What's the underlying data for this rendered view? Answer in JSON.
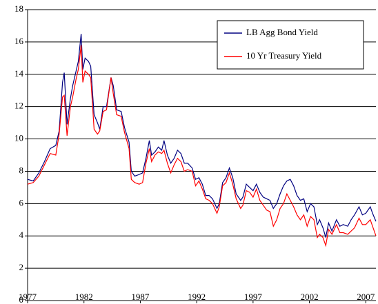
{
  "chart_data": {
    "type": "line",
    "x": [
      1977.0,
      1977.5,
      1978.0,
      1978.5,
      1979.0,
      1979.5,
      1979.8,
      1980.1,
      1980.25,
      1980.5,
      1980.8,
      1981.0,
      1981.3,
      1981.5,
      1981.75,
      1981.9,
      1982.1,
      1982.4,
      1982.6,
      1982.9,
      1983.2,
      1983.4,
      1983.7,
      1984.0,
      1984.4,
      1984.6,
      1984.9,
      1985.3,
      1985.6,
      1986.0,
      1986.2,
      1986.5,
      1986.9,
      1987.2,
      1987.5,
      1987.8,
      1988.0,
      1988.3,
      1988.6,
      1988.9,
      1989.1,
      1989.4,
      1989.7,
      1990.0,
      1990.3,
      1990.6,
      1990.9,
      1991.2,
      1991.6,
      1991.9,
      1992.2,
      1992.5,
      1992.8,
      1993.1,
      1993.4,
      1993.8,
      1994.0,
      1994.3,
      1994.6,
      1994.9,
      1995.2,
      1995.5,
      1995.9,
      1996.1,
      1996.4,
      1996.7,
      1997.0,
      1997.3,
      1997.6,
      1997.9,
      1998.2,
      1998.5,
      1998.8,
      1999.1,
      1999.4,
      1999.7,
      2000.0,
      2000.3,
      2000.6,
      2000.9,
      2001.2,
      2001.5,
      2001.8,
      2002.1,
      2002.4,
      2002.7,
      2002.9,
      2003.2,
      2003.45,
      2003.7,
      2004.0,
      2004.4,
      2004.7,
      2005.0,
      2005.4,
      2005.7,
      2006.0,
      2006.4,
      2006.7,
      2007.0,
      2007.4,
      2007.6,
      2007.9
    ],
    "series": [
      {
        "name": "LB Agg Bond Yield",
        "color": "#000080",
        "values": [
          7.5,
          7.4,
          7.9,
          8.6,
          9.4,
          9.6,
          10.5,
          13.5,
          14.1,
          10.9,
          12.5,
          13.3,
          14.2,
          14.8,
          16.5,
          14.3,
          15.0,
          14.8,
          14.5,
          11.5,
          11.0,
          10.6,
          12.0,
          12.0,
          13.8,
          13.3,
          11.8,
          11.7,
          10.7,
          9.8,
          8.0,
          7.7,
          7.8,
          7.9,
          8.8,
          9.9,
          9.0,
          9.2,
          9.5,
          9.3,
          9.9,
          9.0,
          8.5,
          8.8,
          9.3,
          9.1,
          8.5,
          8.5,
          8.2,
          7.5,
          7.6,
          7.2,
          6.5,
          6.5,
          6.3,
          5.7,
          6.0,
          7.3,
          7.6,
          8.2,
          7.6,
          6.6,
          6.2,
          6.4,
          7.2,
          7.0,
          6.8,
          7.2,
          6.7,
          6.4,
          6.3,
          6.2,
          5.7,
          6.0,
          6.6,
          7.1,
          7.4,
          7.5,
          7.1,
          6.5,
          6.2,
          6.3,
          5.5,
          6.0,
          5.8,
          4.7,
          5.0,
          4.5,
          3.9,
          4.8,
          4.3,
          5.0,
          4.6,
          4.7,
          4.6,
          5.0,
          5.3,
          5.8,
          5.3,
          5.4,
          5.8,
          5.4,
          4.9
        ]
      },
      {
        "name": "10 Yr Treasury Yield",
        "color": "#ff0000",
        "values": [
          7.2,
          7.3,
          7.7,
          8.4,
          9.1,
          9.0,
          10.3,
          12.6,
          12.7,
          10.2,
          12.0,
          12.6,
          13.7,
          14.3,
          15.8,
          13.5,
          14.2,
          14.0,
          13.8,
          10.6,
          10.3,
          10.5,
          11.7,
          11.8,
          13.8,
          12.8,
          11.5,
          11.4,
          10.4,
          9.4,
          7.5,
          7.3,
          7.2,
          7.3,
          8.5,
          9.4,
          8.6,
          9.0,
          9.2,
          9.1,
          9.3,
          8.5,
          7.9,
          8.4,
          8.8,
          8.6,
          8.0,
          8.1,
          8.0,
          7.1,
          7.4,
          6.9,
          6.3,
          6.2,
          6.0,
          5.4,
          5.8,
          7.1,
          7.3,
          7.9,
          7.2,
          6.3,
          5.7,
          5.9,
          6.8,
          6.7,
          6.4,
          6.9,
          6.2,
          5.9,
          5.6,
          5.5,
          4.6,
          5.0,
          5.7,
          6.0,
          6.6,
          6.2,
          5.8,
          5.3,
          5.0,
          5.3,
          4.6,
          5.2,
          5.0,
          3.9,
          4.1,
          3.9,
          3.4,
          4.4,
          4.1,
          4.7,
          4.2,
          4.2,
          4.1,
          4.3,
          4.5,
          5.1,
          4.7,
          4.7,
          5.0,
          4.6,
          4.0
        ]
      }
    ],
    "xlim": [
      1977,
      2007.9
    ],
    "xticks": [
      1977,
      1982,
      1987,
      1992,
      1997,
      2002,
      2007
    ],
    "ylim": [
      0,
      18
    ],
    "yticks": [
      0,
      2,
      4,
      6,
      8,
      10,
      12,
      14,
      16,
      18
    ],
    "grid": true,
    "legend": "upper right"
  }
}
